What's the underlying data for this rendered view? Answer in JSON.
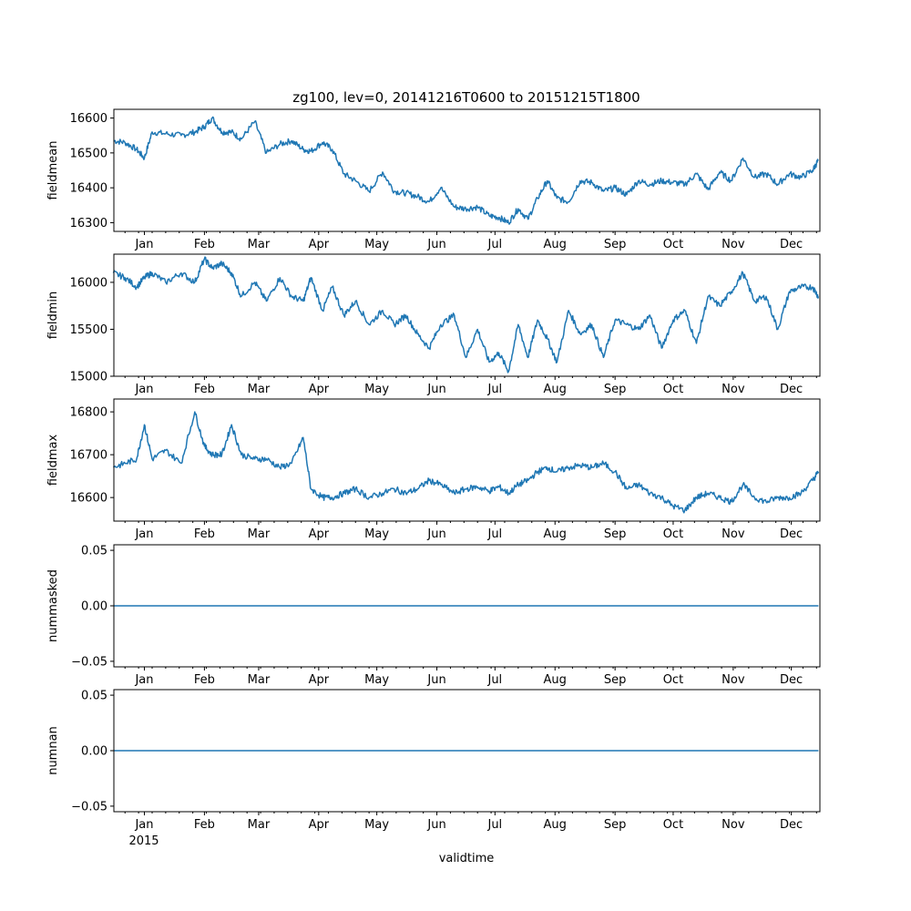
{
  "chart_data": {
    "type": "line",
    "title": "zg100, lev=0, 20141216T0600 to 20151215T1800",
    "xlabel": "validtime",
    "x_range": [
      "2014-12-16T06:00",
      "2015-12-15T18:00"
    ],
    "x_tick_labels": [
      "Jan",
      "Feb",
      "Mar",
      "Apr",
      "May",
      "Jun",
      "Jul",
      "Aug",
      "Sep",
      "Oct",
      "Nov",
      "Dec"
    ],
    "x_tick_dates": [
      "2015-01-01",
      "2015-02-01",
      "2015-03-01",
      "2015-04-01",
      "2015-05-01",
      "2015-06-01",
      "2015-07-01",
      "2015-08-01",
      "2015-09-01",
      "2015-10-01",
      "2015-11-01",
      "2015-12-01"
    ],
    "year_label": "2015",
    "color": "#1f77b4",
    "panels": [
      {
        "ylabel": "fieldmean",
        "ylim": [
          16275,
          16625
        ],
        "yticks": [
          16300,
          16400,
          16500,
          16600
        ],
        "ytick_labels": [
          "16300",
          "16400",
          "16500",
          "16600"
        ],
        "series": {
          "name": "fieldmean",
          "x": [
            "2014-12-16",
            "2014-12-22",
            "2014-12-28",
            "2015-01-01",
            "2015-01-05",
            "2015-01-12",
            "2015-01-20",
            "2015-01-27",
            "2015-02-01",
            "2015-02-05",
            "2015-02-10",
            "2015-02-15",
            "2015-02-20",
            "2015-02-27",
            "2015-03-05",
            "2015-03-12",
            "2015-03-18",
            "2015-03-24",
            "2015-03-28",
            "2015-04-03",
            "2015-04-08",
            "2015-04-14",
            "2015-04-20",
            "2015-04-27",
            "2015-05-04",
            "2015-05-10",
            "2015-05-16",
            "2015-05-22",
            "2015-05-28",
            "2015-06-03",
            "2015-06-10",
            "2015-06-16",
            "2015-06-22",
            "2015-06-28",
            "2015-07-03",
            "2015-07-08",
            "2015-07-13",
            "2015-07-18",
            "2015-07-23",
            "2015-07-28",
            "2015-08-02",
            "2015-08-08",
            "2015-08-14",
            "2015-08-20",
            "2015-08-26",
            "2015-09-01",
            "2015-09-07",
            "2015-09-13",
            "2015-09-19",
            "2015-09-25",
            "2015-10-01",
            "2015-10-07",
            "2015-10-13",
            "2015-10-19",
            "2015-10-25",
            "2015-10-31",
            "2015-11-06",
            "2015-11-12",
            "2015-11-18",
            "2015-11-24",
            "2015-11-30",
            "2015-12-06",
            "2015-12-12",
            "2015-12-15"
          ],
          "y": [
            16535,
            16530,
            16510,
            16485,
            16560,
            16555,
            16550,
            16560,
            16575,
            16600,
            16560,
            16560,
            16540,
            16590,
            16500,
            16525,
            16535,
            16510,
            16505,
            16530,
            16510,
            16440,
            16420,
            16390,
            16445,
            16390,
            16385,
            16375,
            16360,
            16400,
            16345,
            16340,
            16345,
            16320,
            16315,
            16300,
            16340,
            16310,
            16370,
            16420,
            16370,
            16360,
            16420,
            16415,
            16390,
            16400,
            16380,
            16420,
            16410,
            16420,
            16415,
            16410,
            16440,
            16395,
            16445,
            16420,
            16485,
            16430,
            16440,
            16410,
            16440,
            16430,
            16450,
            16480
          ]
        }
      },
      {
        "ylabel": "fieldmin",
        "ylim": [
          15000,
          16300
        ],
        "yticks": [
          15000,
          15500,
          16000
        ],
        "ytick_labels": [
          "15000",
          "15500",
          "16000"
        ],
        "series": {
          "name": "fieldmin",
          "x": [
            "2014-12-16",
            "2014-12-22",
            "2014-12-28",
            "2015-01-01",
            "2015-01-05",
            "2015-01-12",
            "2015-01-20",
            "2015-01-27",
            "2015-02-01",
            "2015-02-05",
            "2015-02-10",
            "2015-02-15",
            "2015-02-20",
            "2015-02-27",
            "2015-03-05",
            "2015-03-12",
            "2015-03-18",
            "2015-03-24",
            "2015-03-28",
            "2015-04-03",
            "2015-04-08",
            "2015-04-14",
            "2015-04-20",
            "2015-04-27",
            "2015-05-04",
            "2015-05-10",
            "2015-05-16",
            "2015-05-22",
            "2015-05-28",
            "2015-06-03",
            "2015-06-10",
            "2015-06-16",
            "2015-06-22",
            "2015-06-28",
            "2015-07-03",
            "2015-07-08",
            "2015-07-13",
            "2015-07-18",
            "2015-07-23",
            "2015-07-28",
            "2015-08-02",
            "2015-08-08",
            "2015-08-14",
            "2015-08-20",
            "2015-08-26",
            "2015-09-01",
            "2015-09-07",
            "2015-09-13",
            "2015-09-19",
            "2015-09-25",
            "2015-10-01",
            "2015-10-07",
            "2015-10-13",
            "2015-10-19",
            "2015-10-25",
            "2015-10-31",
            "2015-11-06",
            "2015-11-12",
            "2015-11-18",
            "2015-11-24",
            "2015-11-30",
            "2015-12-06",
            "2015-12-12",
            "2015-12-15"
          ],
          "y": [
            16100,
            16050,
            15950,
            16050,
            16100,
            16000,
            16100,
            16000,
            16250,
            16150,
            16200,
            16100,
            15850,
            16000,
            15800,
            16050,
            15850,
            15800,
            16050,
            15700,
            15950,
            15650,
            15800,
            15550,
            15700,
            15550,
            15650,
            15450,
            15300,
            15550,
            15650,
            15200,
            15500,
            15150,
            15250,
            15050,
            15550,
            15200,
            15600,
            15400,
            15150,
            15700,
            15450,
            15550,
            15200,
            15600,
            15550,
            15500,
            15650,
            15300,
            15600,
            15700,
            15350,
            15850,
            15750,
            15900,
            16100,
            15800,
            15850,
            15500,
            15900,
            15950,
            15950,
            15850
          ]
        }
      },
      {
        "ylabel": "fieldmax",
        "ylim": [
          16545,
          16830
        ],
        "yticks": [
          16600,
          16700,
          16800
        ],
        "ytick_labels": [
          "16600",
          "16700",
          "16800"
        ],
        "series": {
          "name": "fieldmax",
          "x": [
            "2014-12-16",
            "2014-12-22",
            "2014-12-28",
            "2015-01-01",
            "2015-01-05",
            "2015-01-12",
            "2015-01-20",
            "2015-01-27",
            "2015-02-01",
            "2015-02-05",
            "2015-02-10",
            "2015-02-15",
            "2015-02-20",
            "2015-02-27",
            "2015-03-05",
            "2015-03-12",
            "2015-03-18",
            "2015-03-24",
            "2015-03-28",
            "2015-04-03",
            "2015-04-08",
            "2015-04-14",
            "2015-04-20",
            "2015-04-27",
            "2015-05-04",
            "2015-05-10",
            "2015-05-16",
            "2015-05-22",
            "2015-05-28",
            "2015-06-03",
            "2015-06-10",
            "2015-06-16",
            "2015-06-22",
            "2015-06-28",
            "2015-07-03",
            "2015-07-08",
            "2015-07-13",
            "2015-07-18",
            "2015-07-23",
            "2015-07-28",
            "2015-08-02",
            "2015-08-08",
            "2015-08-14",
            "2015-08-20",
            "2015-08-26",
            "2015-09-01",
            "2015-09-07",
            "2015-09-13",
            "2015-09-19",
            "2015-09-25",
            "2015-10-01",
            "2015-10-07",
            "2015-10-13",
            "2015-10-19",
            "2015-10-25",
            "2015-10-31",
            "2015-11-06",
            "2015-11-12",
            "2015-11-18",
            "2015-11-24",
            "2015-11-30",
            "2015-12-06",
            "2015-12-12",
            "2015-12-15"
          ],
          "y": [
            16670,
            16680,
            16690,
            16770,
            16690,
            16710,
            16680,
            16800,
            16720,
            16700,
            16700,
            16770,
            16700,
            16690,
            16690,
            16670,
            16680,
            16740,
            16620,
            16600,
            16600,
            16610,
            16620,
            16600,
            16610,
            16620,
            16610,
            16620,
            16640,
            16630,
            16610,
            16620,
            16625,
            16615,
            16625,
            16610,
            16630,
            16640,
            16660,
            16670,
            16660,
            16670,
            16675,
            16670,
            16680,
            16660,
            16620,
            16630,
            16610,
            16600,
            16580,
            16570,
            16600,
            16610,
            16600,
            16590,
            16630,
            16600,
            16590,
            16600,
            16600,
            16610,
            16640,
            16660
          ]
        }
      },
      {
        "ylabel": "nummasked",
        "ylim": [
          -0.055,
          0.055
        ],
        "yticks": [
          -0.05,
          0,
          0.05
        ],
        "ytick_labels": [
          "−0.05",
          "0.00",
          "0.05"
        ],
        "series": {
          "name": "nummasked",
          "x": [
            "2014-12-16",
            "2015-12-15"
          ],
          "y": [
            0,
            0
          ]
        }
      },
      {
        "ylabel": "numnan",
        "ylim": [
          -0.055,
          0.055
        ],
        "yticks": [
          -0.05,
          0,
          0.05
        ],
        "ytick_labels": [
          "−0.05",
          "0.00",
          "0.05"
        ],
        "series": {
          "name": "numnan",
          "x": [
            "2014-12-16",
            "2015-12-15"
          ],
          "y": [
            0,
            0
          ]
        }
      }
    ]
  }
}
